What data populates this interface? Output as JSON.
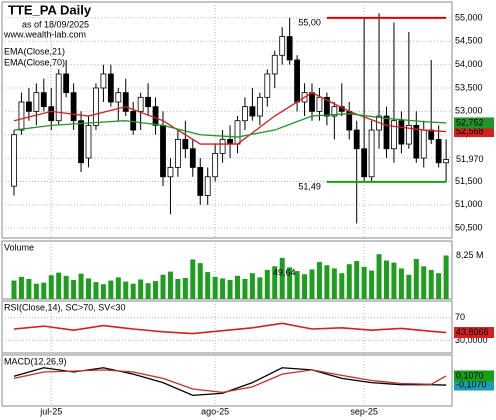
{
  "chart_data": [
    {
      "type": "candlestick",
      "title": "TTE_PA Daily",
      "subtitle": "as of 18/09/2025",
      "source": "www.wealth-lab.com",
      "categories": [
        null,
        null,
        null,
        null,
        null,
        "jul-25",
        null,
        null,
        null,
        null,
        null,
        null,
        null,
        null,
        null,
        null,
        null,
        null,
        null,
        null,
        null,
        null,
        null,
        null,
        null,
        null,
        null,
        "ago-25",
        null,
        null,
        null,
        null,
        null,
        null,
        null,
        null,
        null,
        null,
        null,
        null,
        null,
        null,
        null,
        null,
        null,
        null,
        null,
        "sep-25",
        null,
        null,
        null,
        null,
        null,
        null,
        null,
        null,
        null,
        null,
        null
      ],
      "open": [
        51.4,
        52.6,
        53.2,
        53.0,
        53.4,
        53.1,
        52.8,
        53.8,
        53.4,
        52.8,
        52.0,
        52.7,
        53.5,
        53.8,
        53.2,
        53.4,
        53.0,
        53.0,
        53.3,
        53.1,
        52.7,
        51.6,
        51.8,
        52.4,
        52.2,
        51.8,
        51.2,
        51.6,
        52.1,
        52.4,
        52.3,
        52.8,
        53.1,
        52.9,
        53.3,
        53.8,
        54.2,
        54.6,
        54.1,
        53.2,
        53.4,
        53.0,
        53.3,
        52.9,
        53.1,
        53.0,
        52.6,
        52.2,
        51.6,
        52.6,
        52.9,
        52.2,
        52.8,
        52.3,
        52.7,
        52.0,
        52.6,
        52.4,
        51.9
      ],
      "high": [
        52.6,
        53.4,
        53.5,
        53.6,
        53.7,
        53.5,
        53.9,
        54.1,
        53.6,
        53.0,
        52.9,
        53.6,
        54.0,
        54.0,
        53.5,
        53.7,
        53.2,
        53.4,
        53.6,
        53.3,
        53.0,
        52.0,
        52.6,
        52.8,
        52.4,
        52.0,
        51.8,
        52.3,
        52.6,
        52.7,
        52.9,
        53.3,
        53.5,
        53.4,
        53.9,
        54.3,
        54.8,
        55.0,
        54.2,
        53.6,
        53.6,
        53.5,
        53.4,
        53.2,
        53.6,
        53.2,
        52.8,
        55.0,
        52.8,
        55.1,
        53.1,
        54.9,
        53.0,
        54.7,
        53.0,
        52.8,
        54.1,
        52.7,
        52.4
      ],
      "low": [
        51.2,
        52.5,
        52.8,
        52.7,
        53.0,
        52.6,
        52.7,
        53.3,
        52.6,
        51.7,
        51.8,
        52.6,
        53.2,
        53.1,
        52.8,
        52.9,
        52.5,
        52.6,
        52.9,
        52.5,
        51.4,
        50.8,
        51.6,
        52.0,
        51.6,
        51.0,
        51.0,
        51.5,
        51.9,
        52.0,
        52.1,
        52.6,
        52.8,
        52.7,
        53.1,
        53.5,
        54.0,
        54.0,
        53.0,
        52.9,
        52.8,
        52.8,
        52.7,
        52.4,
        52.9,
        52.4,
        50.6,
        51.5,
        51.5,
        52.2,
        52.0,
        51.9,
        52.1,
        52.2,
        51.9,
        51.8,
        52.3,
        51.8,
        51.5
      ],
      "close": [
        52.5,
        53.2,
        53.0,
        53.4,
        53.1,
        52.8,
        53.8,
        53.4,
        52.8,
        51.9,
        52.7,
        53.5,
        53.8,
        53.2,
        53.4,
        53.0,
        52.6,
        53.3,
        53.1,
        52.7,
        51.6,
        51.8,
        52.4,
        52.2,
        51.8,
        51.2,
        51.6,
        52.1,
        52.4,
        52.3,
        52.8,
        53.1,
        52.9,
        53.3,
        53.8,
        54.2,
        54.6,
        54.1,
        53.2,
        53.4,
        53.0,
        53.3,
        52.9,
        53.1,
        53.0,
        52.6,
        52.2,
        51.6,
        52.6,
        52.9,
        52.2,
        52.8,
        52.3,
        52.7,
        52.0,
        52.6,
        52.4,
        51.9,
        51.97
      ],
      "close_label": "51,970",
      "ylim": [
        50.29,
        55.34
      ],
      "yticks": [
        {
          "value": 50.5,
          "label": "50,500"
        },
        {
          "value": 51,
          "label": "51,000"
        },
        {
          "value": 51.5,
          "label": "51,500"
        },
        {
          "value": 52,
          "label": "52,000"
        },
        {
          "value": 52.5,
          "label": "52,500"
        },
        {
          "value": 53,
          "label": "53,000"
        },
        {
          "value": 53.5,
          "label": "53,500"
        },
        {
          "value": 54,
          "label": "54,000"
        },
        {
          "value": 54.5,
          "label": "54,500"
        },
        {
          "value": 55,
          "label": "55,000"
        }
      ],
      "series": [
        {
          "name": "EMA(Close,21)",
          "color": "#d42020",
          "x": [
            0,
            5,
            10,
            15,
            20,
            25,
            30,
            35,
            40,
            45,
            50,
            55,
            58
          ],
          "values": [
            52.8,
            53.0,
            52.9,
            53.1,
            52.8,
            52.3,
            52.3,
            52.9,
            53.4,
            53.0,
            52.7,
            52.6,
            52.568
          ],
          "last_label": "52,568"
        },
        {
          "name": "EMA(Close,70)",
          "color": "#22952a",
          "x": [
            0,
            5,
            10,
            15,
            20,
            25,
            30,
            35,
            40,
            45,
            50,
            55,
            58
          ],
          "values": [
            52.6,
            52.7,
            52.75,
            52.8,
            52.7,
            52.5,
            52.45,
            52.6,
            52.9,
            52.95,
            52.85,
            52.78,
            52.752
          ],
          "last_label": "52,752"
        }
      ],
      "levels": [
        {
          "value": 55,
          "label": "55,00",
          "color": "#e00000"
        },
        {
          "value": 51.49,
          "label": "51,49",
          "color": "#18a018"
        }
      ]
    },
    {
      "type": "bar",
      "title": "Volume",
      "note": "49,64",
      "color": "#1e9e1e",
      "ylim": [
        0,
        11
      ],
      "values": [
        3.5,
        4.2,
        3.8,
        2.9,
        3.1,
        4.5,
        5.0,
        4.4,
        3.6,
        4.8,
        3.9,
        3.2,
        2.8,
        3.5,
        4.1,
        3.3,
        2.9,
        3.7,
        3.0,
        3.4,
        4.6,
        5.2,
        3.8,
        4.0,
        7.5,
        6.8,
        5.1,
        4.2,
        3.9,
        3.6,
        4.4,
        3.8,
        4.9,
        4.1,
        5.5,
        6.2,
        7.8,
        6.0,
        5.3,
        4.7,
        5.6,
        7.0,
        6.4,
        5.8,
        4.9,
        6.6,
        7.2,
        6.1,
        5.4,
        8.5,
        7.3,
        6.9,
        5.8,
        4.6,
        7.6,
        6.2,
        5.5,
        4.9,
        8.25
      ],
      "last_label": "8,25 M"
    },
    {
      "type": "line",
      "title": "RSI(Close,14), SC>70, SV<30",
      "ylim": [
        8,
        99
      ],
      "yticks": [
        70,
        {
          "value": 30,
          "label": "30,0000"
        }
      ],
      "series": [
        {
          "color": "#d42020",
          "x": [
            0,
            4,
            8,
            12,
            16,
            20,
            24,
            28,
            32,
            36,
            40,
            44,
            48,
            52,
            56,
            58
          ],
          "values": [
            50,
            55,
            48,
            56,
            50,
            45,
            42,
            47,
            52,
            60,
            50,
            52,
            48,
            51,
            46,
            43.8066
          ],
          "last_label": "43,8066"
        }
      ]
    },
    {
      "type": "line",
      "title": "MACD(12,26,9)",
      "ylim": [
        -0.6,
        0.6
      ],
      "series": [
        {
          "color": "#000000",
          "label_color": "#1aa0b0",
          "x": [
            0,
            4,
            8,
            12,
            16,
            20,
            24,
            28,
            32,
            36,
            40,
            44,
            48,
            52,
            56,
            58
          ],
          "values": [
            0.1,
            0.3,
            0.2,
            0.3,
            0.15,
            -0.05,
            -0.35,
            -0.3,
            -0.05,
            0.3,
            0.25,
            0.05,
            -0.05,
            -0.1,
            -0.1,
            -0.107
          ],
          "last_label": "-0,1070"
        },
        {
          "color": "#c03030",
          "label_color": "#18a018",
          "x": [
            0,
            4,
            8,
            12,
            16,
            20,
            24,
            28,
            32,
            36,
            40,
            44,
            48,
            52,
            56,
            58
          ],
          "values": [
            0.05,
            0.2,
            0.22,
            0.25,
            0.2,
            0.05,
            -0.2,
            -0.28,
            -0.15,
            0.15,
            0.25,
            0.12,
            0.0,
            -0.07,
            -0.09,
            0.107
          ],
          "last_label": "0,1070"
        }
      ]
    }
  ]
}
